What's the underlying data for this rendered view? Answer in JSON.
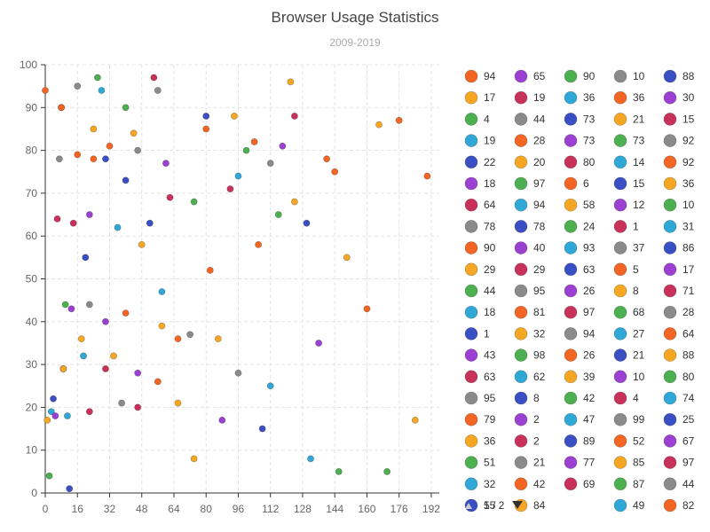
{
  "chart_data": {
    "type": "scatter",
    "title": "Browser Usage Statistics",
    "subtitle": "2009-2019",
    "xlim": [
      0,
      196
    ],
    "ylim": [
      0,
      100
    ],
    "x_ticks": [
      0,
      16,
      32,
      48,
      64,
      80,
      96,
      112,
      128,
      144,
      160,
      176,
      192
    ],
    "y_ticks": [
      0,
      10,
      20,
      30,
      40,
      50,
      60,
      70,
      80,
      90,
      100
    ],
    "grid": true,
    "legend_position": "right",
    "palette": [
      "#f26522",
      "#f5a623",
      "#4caf50",
      "#2fa8d8",
      "#3b4fc4",
      "#9b40d0",
      "#c8325a",
      "#8a8a8a"
    ],
    "series": [
      {
        "label": "94",
        "color": "#f26522",
        "points": [
          [
            0,
            94
          ],
          [
            8,
            90
          ],
          [
            32,
            81
          ],
          [
            80,
            85
          ],
          [
            104,
            82
          ],
          [
            140,
            78
          ],
          [
            160,
            43
          ],
          [
            176,
            87
          ],
          [
            190,
            74
          ]
        ]
      },
      {
        "label": "17",
        "color": "#f5a623",
        "points": [
          [
            1,
            17
          ],
          [
            9,
            29
          ],
          [
            24,
            85
          ],
          [
            44,
            84
          ],
          [
            86,
            36
          ],
          [
            122,
            96
          ],
          [
            150,
            55
          ],
          [
            166,
            86
          ],
          [
            184,
            17
          ]
        ]
      },
      {
        "label": "4",
        "color": "#4caf50",
        "points": [
          [
            2,
            4
          ],
          [
            10,
            44
          ],
          [
            26,
            97
          ],
          [
            40,
            90
          ],
          [
            74,
            68
          ],
          [
            100,
            80
          ],
          [
            116,
            65
          ],
          [
            146,
            5
          ],
          [
            170,
            5
          ]
        ]
      },
      {
        "label": "19",
        "color": "#2fa8d8",
        "points": [
          [
            3,
            19
          ],
          [
            11,
            18
          ],
          [
            19,
            32
          ],
          [
            28,
            94
          ],
          [
            36,
            62
          ],
          [
            58,
            47
          ],
          [
            96,
            74
          ],
          [
            112,
            25
          ],
          [
            132,
            8
          ]
        ]
      },
      {
        "label": "22",
        "color": "#3b4fc4",
        "points": [
          [
            4,
            22
          ],
          [
            12,
            1
          ],
          [
            20,
            55
          ],
          [
            30,
            78
          ],
          [
            40,
            73
          ],
          [
            52,
            63
          ],
          [
            80,
            88
          ],
          [
            108,
            15
          ],
          [
            130,
            63
          ]
        ]
      },
      {
        "label": "18",
        "color": "#9b40d0",
        "points": [
          [
            5,
            18
          ],
          [
            13,
            43
          ],
          [
            22,
            65
          ],
          [
            30,
            40
          ],
          [
            46,
            28
          ],
          [
            60,
            77
          ],
          [
            88,
            17
          ],
          [
            118,
            81
          ],
          [
            136,
            35
          ]
        ]
      },
      {
        "label": "64",
        "color": "#c8325a",
        "points": [
          [
            6,
            64
          ],
          [
            14,
            63
          ],
          [
            22,
            19
          ],
          [
            30,
            29
          ],
          [
            46,
            20
          ],
          [
            54,
            97
          ],
          [
            62,
            69
          ],
          [
            92,
            71
          ],
          [
            124,
            88
          ]
        ]
      },
      {
        "label": "78",
        "color": "#8a8a8a",
        "points": [
          [
            7,
            78
          ],
          [
            16,
            95
          ],
          [
            22,
            44
          ],
          [
            38,
            21
          ],
          [
            46,
            80
          ],
          [
            56,
            94
          ],
          [
            72,
            37
          ],
          [
            96,
            28
          ],
          [
            112,
            77
          ]
        ]
      },
      {
        "label": "90",
        "color": "#f26522",
        "points": [
          [
            8,
            90
          ],
          [
            16,
            79
          ],
          [
            24,
            78
          ],
          [
            40,
            42
          ],
          [
            56,
            26
          ],
          [
            66,
            36
          ],
          [
            82,
            52
          ],
          [
            106,
            58
          ],
          [
            144,
            75
          ]
        ]
      },
      {
        "label": "29",
        "color": "#f5a623",
        "points": [
          [
            9,
            29
          ],
          [
            18,
            36
          ],
          [
            34,
            32
          ],
          [
            48,
            58
          ],
          [
            58,
            39
          ],
          [
            66,
            21
          ],
          [
            74,
            8
          ],
          [
            94,
            88
          ],
          [
            124,
            68
          ]
        ]
      }
    ],
    "legend": [
      [
        "94",
        "17",
        "4",
        "19",
        "22",
        "18",
        "64",
        "78",
        "90",
        "29",
        "44",
        "18",
        "1",
        "43",
        "63",
        "95",
        "79",
        "36",
        "51",
        "32",
        "55"
      ],
      [
        "65",
        "19",
        "44",
        "28",
        "20",
        "97",
        "94",
        "78",
        "40",
        "29",
        "95",
        "81",
        "32",
        "98",
        "62",
        "8",
        "2",
        "2",
        "21",
        "42",
        "84"
      ],
      [
        "90",
        "36",
        "73",
        "73",
        "80",
        "6",
        "58",
        "24",
        "93",
        "63",
        "26",
        "97",
        "94",
        "26",
        "39",
        "42",
        "47",
        "89",
        "77",
        "69"
      ],
      [
        "10",
        "36",
        "21",
        "73",
        "14",
        "15",
        "12",
        "1",
        "37",
        "5",
        "8",
        "68",
        "27",
        "21",
        "10",
        "4",
        "99",
        "52",
        "85",
        "87",
        "49"
      ],
      [
        "88",
        "30",
        "15",
        "92",
        "92",
        "36",
        "10",
        "31",
        "86",
        "17",
        "71",
        "28",
        "64",
        "88",
        "80",
        "74",
        "25",
        "67",
        "97",
        "44",
        "82"
      ]
    ],
    "legend_colors": [
      [
        "#f26522",
        "#f5a623",
        "#4caf50",
        "#2fa8d8",
        "#3b4fc4",
        "#9b40d0",
        "#c8325a",
        "#8a8a8a",
        "#f26522",
        "#f5a623",
        "#4caf50",
        "#2fa8d8",
        "#3b4fc4",
        "#9b40d0",
        "#c8325a",
        "#8a8a8a",
        "#f26522",
        "#f5a623",
        "#4caf50",
        "#2fa8d8",
        "#3b4fc4"
      ],
      [
        "#9b40d0",
        "#c8325a",
        "#8a8a8a",
        "#f26522",
        "#f5a623",
        "#4caf50",
        "#2fa8d8",
        "#3b4fc4",
        "#9b40d0",
        "#c8325a",
        "#8a8a8a",
        "#f26522",
        "#f5a623",
        "#4caf50",
        "#2fa8d8",
        "#3b4fc4",
        "#9b40d0",
        "#c8325a",
        "#8a8a8a",
        "#f26522",
        "#f5a623"
      ],
      [
        "#4caf50",
        "#2fa8d8",
        "#3b4fc4",
        "#9b40d0",
        "#c8325a",
        "#f26522",
        "#f5a623",
        "#4caf50",
        "#2fa8d8",
        "#3b4fc4",
        "#9b40d0",
        "#c8325a",
        "#8a8a8a",
        "#f26522",
        "#f5a623",
        "#4caf50",
        "#2fa8d8",
        "#3b4fc4",
        "#9b40d0",
        "#c8325a"
      ],
      [
        "#8a8a8a",
        "#f26522",
        "#f5a623",
        "#4caf50",
        "#2fa8d8",
        "#3b4fc4",
        "#9b40d0",
        "#c8325a",
        "#8a8a8a",
        "#f26522",
        "#f5a623",
        "#4caf50",
        "#2fa8d8",
        "#3b4fc4",
        "#9b40d0",
        "#c8325a",
        "#8a8a8a",
        "#f26522",
        "#f5a623",
        "#4caf50",
        "#2fa8d8"
      ],
      [
        "#3b4fc4",
        "#9b40d0",
        "#c8325a",
        "#8a8a8a",
        "#f26522",
        "#f5a623",
        "#4caf50",
        "#2fa8d8",
        "#3b4fc4",
        "#9b40d0",
        "#c8325a",
        "#8a8a8a",
        "#f26522",
        "#f5a623",
        "#4caf50",
        "#2fa8d8",
        "#3b4fc4",
        "#9b40d0",
        "#c8325a",
        "#8a8a8a",
        "#f26522"
      ]
    ],
    "pager": {
      "label": "1 / 2",
      "prev_icon": "triangle-up-icon",
      "next_icon": "triangle-down-icon"
    }
  }
}
